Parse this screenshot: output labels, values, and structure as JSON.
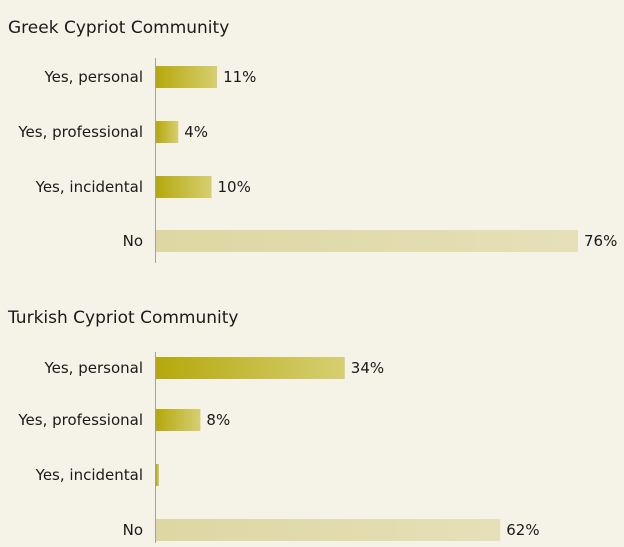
{
  "chart_data": [
    {
      "type": "bar",
      "orientation": "horizontal",
      "title": "Greek Cypriot Community",
      "categories": [
        "Yes, personal",
        "Yes, professional",
        "Yes, incidental",
        "No"
      ],
      "values": [
        11,
        4,
        10,
        76
      ],
      "value_labels": [
        "11%",
        "4%",
        "10%",
        "76%"
      ],
      "xlim": [
        0,
        76
      ]
    },
    {
      "type": "bar",
      "orientation": "horizontal",
      "title": "Turkish Cypriot Community",
      "categories": [
        "Yes, personal",
        "Yes, professional",
        "Yes, incidental",
        "No"
      ],
      "values": [
        34,
        8,
        0.5,
        62
      ],
      "value_labels": [
        "34%",
        "8%",
        "",
        "62%"
      ],
      "xlim": [
        0,
        76
      ]
    }
  ],
  "colors": {
    "background": "#f5f3e8",
    "bar_yes_start": "#b5a80c",
    "bar_yes_end": "#d6cf72",
    "bar_no_start": "#ddd7a2",
    "bar_no_end": "#e5e0b8",
    "axis": "#a5a395",
    "text": "#1a1a1a"
  }
}
